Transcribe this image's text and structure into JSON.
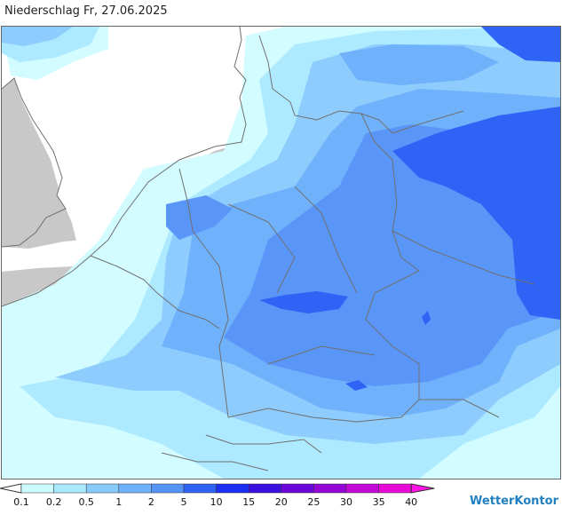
{
  "title": "Niederschlag Fr, 27.06.2025",
  "legend": {
    "labels": [
      "0.1",
      "0.2",
      "0.5",
      "1",
      "2",
      "5",
      "10",
      "15",
      "20",
      "25",
      "30",
      "35",
      "40"
    ],
    "colors": [
      "#ffffff",
      "#ccfcff",
      "#a9e9ff",
      "#89cbfc",
      "#6fb1fb",
      "#5693f7",
      "#2e63f5",
      "#1b2ef2",
      "#3a10e0",
      "#6a06d8",
      "#9406d6",
      "#c20ad6",
      "#e80ad6",
      "#ff13e5"
    ]
  },
  "map": {
    "colors": {
      "sea": "#ffffff",
      "land": "#c8c8c8",
      "level_01": "#d2fcff",
      "level_02": "#aeeaff",
      "level_05": "#8dccfd",
      "level_1": "#6fb1fb",
      "level_2": "#5a96f8",
      "level_5": "#2e63f5",
      "level_10": "#1b3ff2",
      "borders": "#707070"
    }
  },
  "brand": {
    "name": "Wetter",
    "name2": "Kontor"
  }
}
